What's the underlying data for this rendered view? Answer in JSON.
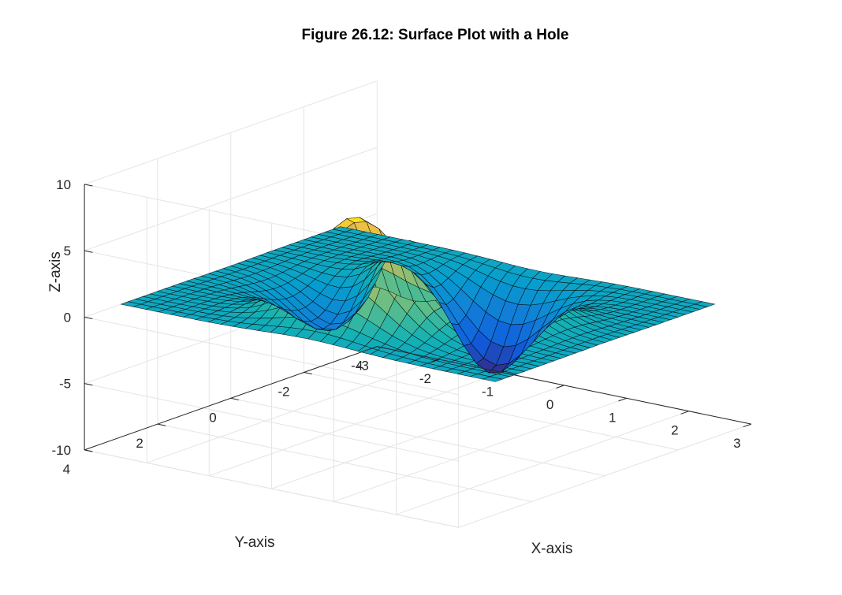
{
  "chart_data": {
    "type": "surface",
    "title": "Figure 26.12: Surface Plot with a Hole",
    "xlabel": "X-axis",
    "ylabel": "Y-axis",
    "zlabel": "Z-axis",
    "xlim": [
      -3,
      3
    ],
    "ylim": [
      -4,
      4
    ],
    "zlim": [
      -10,
      10
    ],
    "xticks": [
      -3,
      -2,
      -1,
      0,
      1,
      2,
      3
    ],
    "yticks": [
      -4,
      -2,
      0,
      2,
      4
    ],
    "zticks": [
      -10,
      -5,
      0,
      5,
      10
    ],
    "xticklabels": [
      "-3",
      "-2",
      "-1",
      "0",
      "1",
      "2",
      "3"
    ],
    "yticklabels": [
      "-4",
      "-2",
      "0",
      "2",
      "4"
    ],
    "zticklabels": [
      "-10",
      "-5",
      "0",
      "5",
      "10"
    ],
    "surface_domain": {
      "x": [
        -3,
        3
      ],
      "y": [
        -3,
        3
      ],
      "grid_points": 31
    },
    "function": "peaks",
    "hole": {
      "x_range": [
        -0.6,
        0.6
      ],
      "y_range": [
        -0.6,
        0.6
      ]
    },
    "z_extremes": {
      "max": 8.1,
      "min": -6.5
    },
    "colormap": "parula",
    "grid": true
  }
}
